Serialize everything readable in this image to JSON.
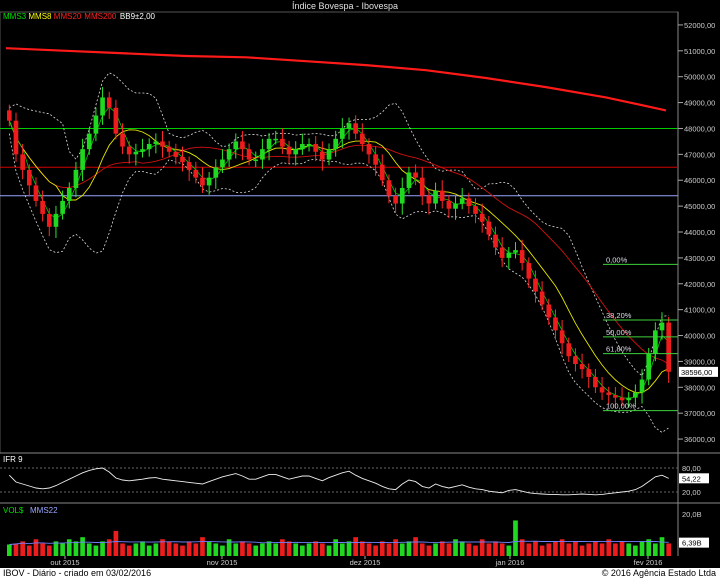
{
  "title": "Índice Bovespa - Ibovespa",
  "footer_left": "IBOV - Diário - criado em 03/02/2016",
  "footer_right": "© 2016 Agência Estado Ltda",
  "legend": [
    {
      "label": "MMS3",
      "color": "#00e000"
    },
    {
      "label": "MMS8",
      "color": "#ffff00"
    },
    {
      "label": "MMS20",
      "color": "#ff2020"
    },
    {
      "label": "MMS200",
      "color": "#ff2020"
    },
    {
      "label": "BB9±2,00",
      "color": "#ffffff"
    }
  ],
  "chart_data": {
    "type": "candlestick",
    "x_ticks": [
      "out 2015",
      "nov 2015",
      "dez 2015",
      "jan 2016",
      "fev 2016"
    ],
    "price_axis": {
      "ylim": [
        35500,
        52500
      ],
      "ticks": [
        "52000,00",
        "51000,00",
        "50000,00",
        "49000,00",
        "48000,00",
        "47000,00",
        "46000,00",
        "45000,00",
        "44000,00",
        "43000,00",
        "42000,00",
        "41000,00",
        "40000,00",
        "39000,00",
        "38000,00",
        "37000,00",
        "36000,00"
      ],
      "last_value": "38596,00"
    },
    "horizontal_lines": [
      {
        "value": 48000,
        "color": "#00cc00"
      },
      {
        "value": 46500,
        "color": "#d00000"
      },
      {
        "value": 45400,
        "color": "#9aa6ff"
      }
    ],
    "fibonacci": [
      {
        "label": "0,00%",
        "value": 42750
      },
      {
        "label": "38,20%",
        "value": 40600
      },
      {
        "label": "50,00%",
        "value": 39950
      },
      {
        "label": "61,80%",
        "value": 39300
      },
      {
        "label": "100,00%",
        "value": 37100
      }
    ],
    "mms200": [
      51100,
      51000,
      50900,
      50800,
      50750,
      50600,
      50450,
      50250,
      49950,
      49600,
      49200,
      48700
    ],
    "closes": [
      48300,
      47000,
      46400,
      45800,
      45200,
      44700,
      44200,
      44700,
      45200,
      45700,
      46400,
      47200,
      47800,
      48500,
      49200,
      48800,
      47800,
      47300,
      47000,
      47100,
      47200,
      47400,
      47500,
      47300,
      47100,
      46900,
      46700,
      46400,
      46100,
      45800,
      46100,
      46500,
      46800,
      47200,
      47500,
      47200,
      46800,
      46800,
      47200,
      47600,
      47600,
      47300,
      47000,
      47200,
      47400,
      47400,
      47100,
      46800,
      47200,
      47600,
      48000,
      48200,
      47800,
      47400,
      47000,
      46600,
      46000,
      45400,
      45100,
      45700,
      46300,
      46100,
      45400,
      45100,
      45600,
      45200,
      44900,
      45100,
      45300,
      45000,
      44700,
      44400,
      43900,
      43400,
      43000,
      43200,
      43300,
      42800,
      42200,
      41700,
      41200,
      40700,
      40200,
      39700,
      39200,
      38900,
      38700,
      38400,
      38000,
      37800,
      37700,
      37600,
      37500,
      37600,
      37800,
      38300,
      39300,
      40200,
      40500,
      38600
    ],
    "rsi": {
      "label": "IFR 9",
      "ylim": [
        0,
        100
      ],
      "ticks": [
        "80,00",
        "54,22",
        "20,00"
      ],
      "values": [
        62,
        45,
        40,
        35,
        30,
        28,
        30,
        36,
        44,
        52,
        60,
        68,
        74,
        78,
        80,
        70,
        55,
        50,
        48,
        50,
        52,
        55,
        56,
        52,
        50,
        48,
        46,
        44,
        42,
        40,
        46,
        52,
        58,
        62,
        66,
        60,
        52,
        52,
        58,
        64,
        64,
        58,
        52,
        56,
        60,
        60,
        54,
        48,
        56,
        62,
        68,
        72,
        62,
        54,
        48,
        42,
        34,
        28,
        26,
        40,
        50,
        46,
        34,
        30,
        40,
        34,
        30,
        34,
        38,
        32,
        28,
        26,
        22,
        20,
        18,
        24,
        26,
        22,
        18,
        16,
        15,
        14,
        14,
        13,
        13,
        14,
        15,
        14,
        13,
        14,
        16,
        18,
        20,
        22,
        26,
        34,
        46,
        58,
        62,
        54
      ]
    },
    "volume": {
      "label": "VOL$",
      "ma_label": "MMS22",
      "ticks": [
        "20,0B",
        "6,39B"
      ],
      "values": [
        5.5,
        6,
        7,
        5,
        8,
        6,
        5,
        7,
        6,
        8,
        7,
        9,
        6,
        5,
        7,
        8,
        12,
        6,
        5,
        6,
        7,
        5,
        6,
        8,
        7,
        6,
        5,
        7,
        6,
        9,
        7,
        6,
        5,
        8,
        6,
        7,
        6,
        5,
        6,
        7,
        6,
        8,
        7,
        6,
        5,
        6,
        7,
        6,
        5,
        8,
        6,
        7,
        9,
        7,
        6,
        5,
        7,
        6,
        8,
        6,
        7,
        9,
        6,
        5,
        6,
        7,
        6,
        8,
        7,
        6,
        5,
        8,
        6,
        7,
        6,
        5,
        17,
        8,
        6,
        7,
        5,
        6,
        7,
        8,
        6,
        7,
        5,
        6,
        7,
        6,
        8,
        6,
        7,
        6,
        5,
        7,
        8,
        6,
        9,
        6
      ]
    }
  }
}
